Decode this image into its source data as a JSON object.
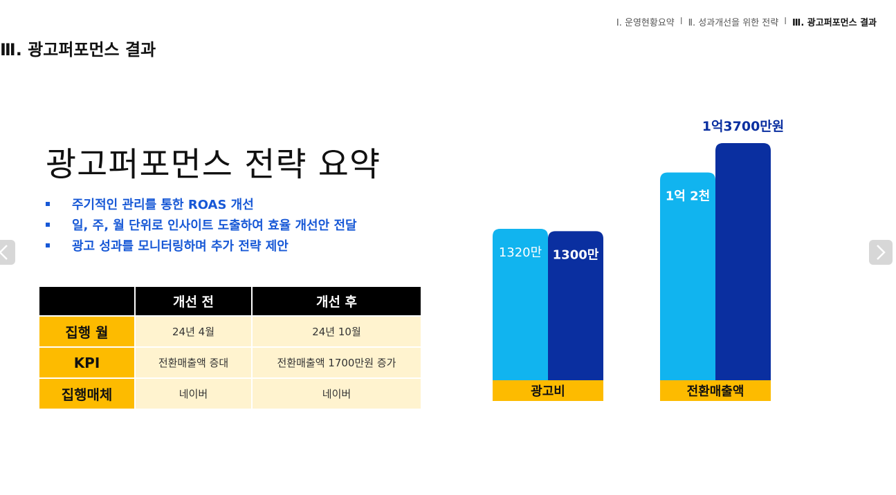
{
  "breadcrumb": {
    "items": [
      "Ⅰ. 운영현황요약",
      "Ⅱ. 성과개선을 위한 전략",
      "Ⅲ. 광고퍼포먼스 결과"
    ],
    "separator": "I"
  },
  "page": {
    "title": "Ⅲ. 광고퍼포먼스 결과",
    "heading": "광고퍼포먼스 전략 요약"
  },
  "nav": {
    "prev_icon": "chevron-left-icon",
    "next_icon": "chevron-right-icon"
  },
  "bullets": [
    "주기적인 관리를 통한 ROAS 개선",
    "일, 주, 월 단위로 인사이트 도출하여 효율 개선안 전달",
    "광고 성과를 모니터링하며 추가 전략 제안"
  ],
  "table": {
    "headers": [
      "",
      "개선 전",
      "개선 후"
    ],
    "rows": [
      {
        "label": "집행 월",
        "before": "24년 4월",
        "after": "24년 10월"
      },
      {
        "label": "KPI",
        "before": "전환매출액 증대",
        "after": "전환매출액 1700만원 증가"
      },
      {
        "label": "집행매체",
        "before": "네이버",
        "after": "네이버"
      }
    ]
  },
  "colors": {
    "bullet_blue": "#1758d6",
    "light_blue": "#11b4ef",
    "dark_blue": "#0a2fa0",
    "yellow": "#fdbb00",
    "header_black": "#000000",
    "cell_cream": "#fff3cf"
  },
  "chart_data": {
    "type": "bar",
    "categories": [
      "광고비",
      "전환매출액"
    ],
    "series": [
      {
        "values": [
          1320,
          12000
        ],
        "labels": [
          "1320만",
          "1억 2천"
        ]
      },
      {
        "values": [
          1300,
          13700
        ],
        "labels": [
          "1300만",
          "1억3700만원"
        ]
      }
    ],
    "units": "만원",
    "title": "",
    "xlabel": "",
    "ylabel": ""
  }
}
